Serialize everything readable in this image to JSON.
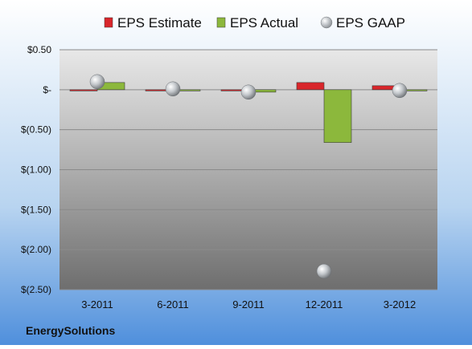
{
  "chart_data": {
    "type": "bar",
    "categories": [
      "3-2011",
      "6-2011",
      "9-2011",
      "12-2011",
      "3-2012"
    ],
    "series": [
      {
        "name": "EPS Estimate",
        "values": [
          -0.01,
          -0.01,
          0.0,
          0.09,
          0.05
        ],
        "color": "#d9262b"
      },
      {
        "name": "EPS Actual",
        "values": [
          0.09,
          -0.01,
          -0.03,
          -0.66,
          -0.01
        ],
        "color": "#8cb83c"
      },
      {
        "name": "EPS GAAP",
        "values": [
          0.1,
          0.01,
          -0.03,
          -2.27,
          -0.01
        ],
        "color": "#b9bec4"
      }
    ],
    "yticks": [
      "$0.50",
      "$-",
      "$(0.50)",
      "$(1.00)",
      "$(1.50)",
      "$(2.00)",
      "$(2.50)"
    ],
    "ylim": [
      -2.5,
      0.5
    ],
    "grid": true,
    "legend_position": "top",
    "company": "EnergySolutions"
  }
}
